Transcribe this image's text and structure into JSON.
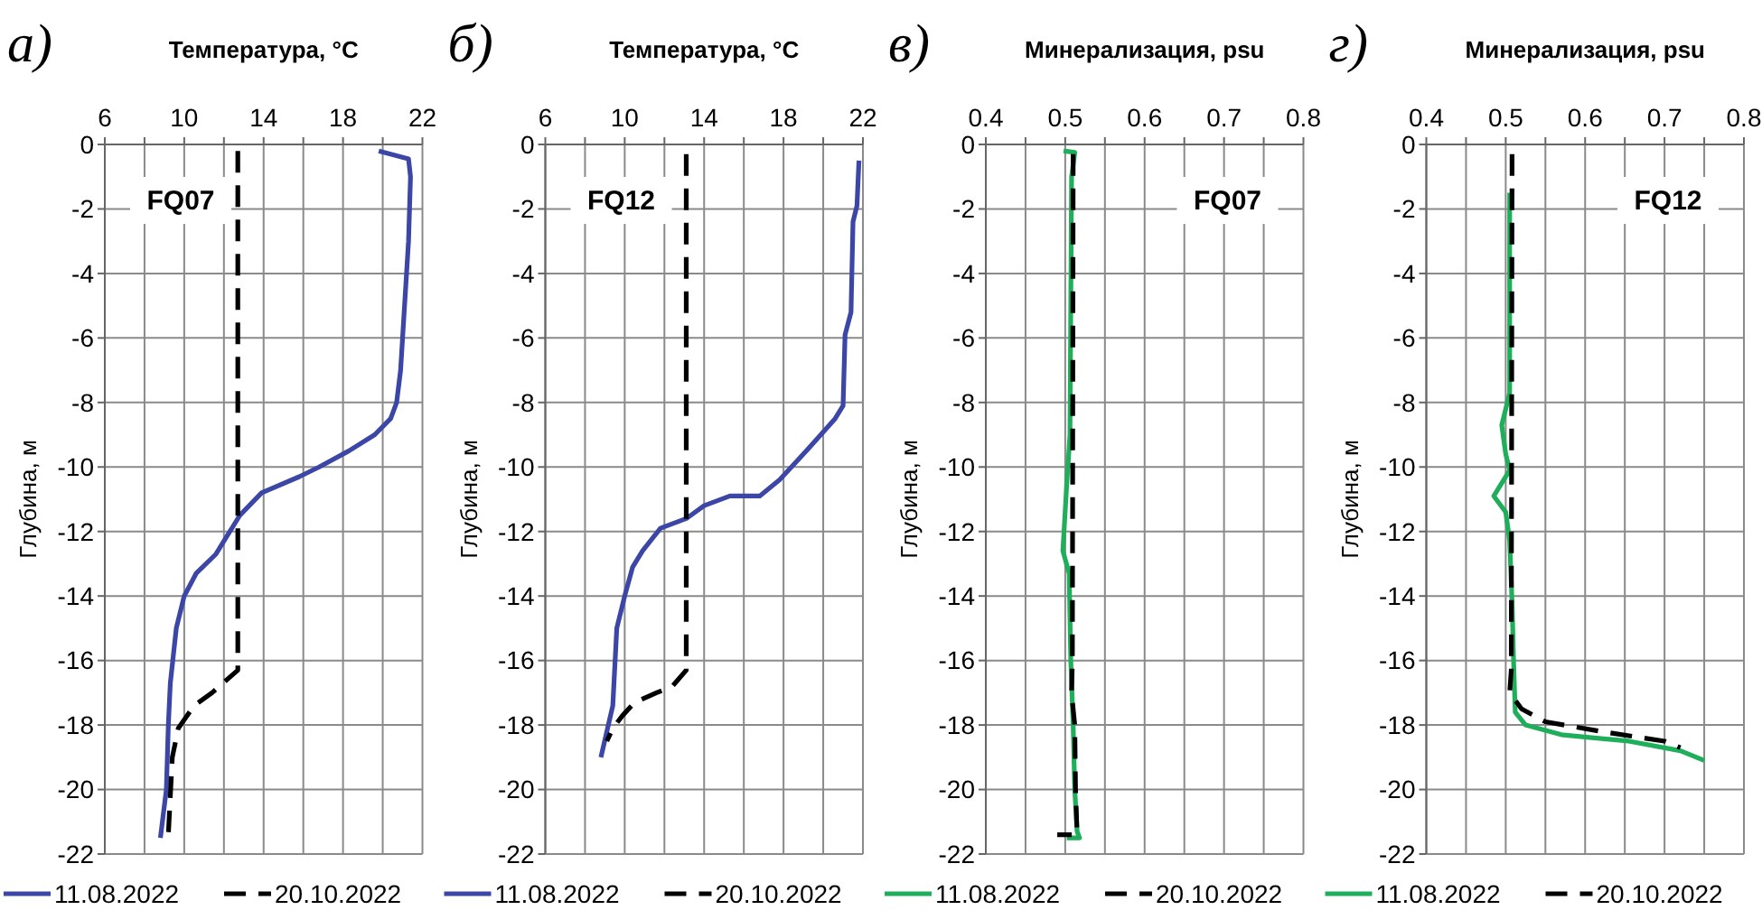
{
  "chart_data": [
    {
      "type": "line",
      "title": "а)",
      "xlabel": "Температура, °C",
      "ylabel": "Глубина, м",
      "xlim": [
        6,
        22
      ],
      "xticks": [
        6,
        {
          "value": 8,
          "label": null
        },
        10,
        {
          "value": 12,
          "label": null
        },
        14,
        {
          "value": 16,
          "label": null
        },
        18,
        {
          "value": 20,
          "label": null
        },
        22
      ],
      "ylim": [
        -22,
        0
      ],
      "yticks": [
        0,
        -2,
        -4,
        -6,
        -8,
        -10,
        -12,
        -14,
        -16,
        -18,
        -20,
        -22
      ],
      "grid": true,
      "legend": "bottom",
      "annotations": [
        "FQ07"
      ],
      "series": [
        {
          "name": "11.08.2022",
          "color": "#3b46a6",
          "line_style": "solid",
          "x": [
            19.8,
            21.3,
            21.4,
            21.3,
            21.2,
            21.0,
            20.9,
            20.7,
            20.4,
            19.6,
            18.3,
            16.8,
            15.8,
            13.9,
            12.8,
            12.3,
            11.6,
            10.6,
            10.0,
            9.6,
            9.3,
            9.2,
            9.1,
            8.8
          ],
          "values": [
            -0.2,
            -0.45,
            -1,
            -3,
            -4,
            -6,
            -7,
            -8,
            -8.5,
            -9,
            -9.5,
            -10,
            -10.3,
            -10.8,
            -11.5,
            -12,
            -12.7,
            -13.3,
            -14,
            -15,
            -16.7,
            -18,
            -20,
            -21.5
          ]
        },
        {
          "name": "20.10.2022",
          "color": "#000000",
          "line_style": "dashed",
          "x": [
            12.7,
            12.7,
            11.4,
            10.5,
            9.7,
            9.4,
            9.2
          ],
          "values": [
            -0.2,
            -16.3,
            -17,
            -17.4,
            -18.1,
            -19,
            -21.4
          ]
        }
      ]
    },
    {
      "type": "line",
      "title": "б)",
      "xlabel": "Температура, °C",
      "ylabel": "Глубина, м",
      "xlim": [
        6,
        22
      ],
      "xticks": [
        6,
        {
          "value": 8,
          "label": null
        },
        10,
        {
          "value": 12,
          "label": null
        },
        14,
        {
          "value": 16,
          "label": null
        },
        18,
        {
          "value": 20,
          "label": null
        },
        22
      ],
      "ylim": [
        -22,
        0
      ],
      "yticks": [
        0,
        -2,
        -4,
        -6,
        -8,
        -10,
        -12,
        -14,
        -16,
        -18,
        -20,
        -22
      ],
      "grid": true,
      "legend": "bottom",
      "annotations": [
        "FQ12"
      ],
      "series": [
        {
          "name": "11.08.2022",
          "color": "#3b46a6",
          "line_style": "solid",
          "x": [
            21.8,
            21.7,
            21.5,
            21.4,
            21.1,
            21.0,
            20.6,
            19.3,
            17.8,
            16.8,
            15.3,
            14.0,
            13.1,
            11.8,
            10.9,
            10.4,
            10.0,
            9.6,
            9.4,
            8.8
          ],
          "values": [
            -0.5,
            -1.9,
            -2.4,
            -5.2,
            -5.9,
            -8.1,
            -8.5,
            -9.4,
            -10.4,
            -10.9,
            -10.9,
            -11.2,
            -11.6,
            -11.9,
            -12.6,
            -13.1,
            -14,
            -15,
            -17.4,
            -19
          ]
        },
        {
          "name": "20.10.2022",
          "color": "#000000",
          "line_style": "dashed",
          "x": [
            13.1,
            13.1,
            12.4,
            11.6,
            10.5,
            9.9,
            9.4,
            9.1
          ],
          "values": [
            -0.3,
            -16.3,
            -16.8,
            -17,
            -17.3,
            -17.7,
            -18.1,
            -18.5
          ]
        }
      ]
    },
    {
      "type": "line",
      "title": "в)",
      "xlabel": "Минерализация, psu",
      "ylabel": "Глубина, м",
      "xlim": [
        0.4,
        0.8
      ],
      "xticks": [
        0.4,
        {
          "value": 0.45,
          "label": null
        },
        0.5,
        {
          "value": 0.55,
          "label": null
        },
        0.6,
        {
          "value": 0.65,
          "label": null
        },
        0.7,
        {
          "value": 0.75,
          "label": null
        },
        0.8
      ],
      "ylim": [
        -22,
        0
      ],
      "yticks": [
        0,
        -2,
        -4,
        -6,
        -8,
        -10,
        -12,
        -14,
        -16,
        -18,
        -20,
        -22
      ],
      "grid": true,
      "legend": "bottom",
      "annotations": [
        "FQ07"
      ],
      "series": [
        {
          "name": "11.08.2022",
          "color": "#1fae5a",
          "line_style": "solid",
          "x": [
            0.498,
            0.512,
            0.508,
            0.507,
            0.506,
            0.502,
            0.498,
            0.497,
            0.505,
            0.507,
            0.51,
            0.512,
            0.515,
            0.518,
            0.502
          ],
          "values": [
            -0.2,
            -0.25,
            -1,
            -5,
            -9,
            -10.5,
            -12.2,
            -12.6,
            -13.3,
            -16,
            -18,
            -20,
            -21.3,
            -21.5,
            -21.5
          ]
        },
        {
          "name": "20.10.2022",
          "color": "#000000",
          "line_style": "dashed",
          "x": [
            0.51,
            0.509,
            0.508,
            0.512,
            0.513,
            0.515,
            0.49
          ],
          "values": [
            -0.3,
            -16,
            -17,
            -18,
            -20,
            -21.4,
            -21.4
          ]
        }
      ]
    },
    {
      "type": "line",
      "title": "г)",
      "xlabel": "Минерализация, psu",
      "ylabel": "Глубина, м",
      "xlim": [
        0.4,
        0.8
      ],
      "xticks": [
        0.4,
        {
          "value": 0.45,
          "label": null
        },
        0.5,
        {
          "value": 0.55,
          "label": null
        },
        0.6,
        {
          "value": 0.65,
          "label": null
        },
        0.7,
        {
          "value": 0.75,
          "label": null
        },
        0.8
      ],
      "ylim": [
        -22,
        0
      ],
      "yticks": [
        0,
        -2,
        -4,
        -6,
        -8,
        -10,
        -12,
        -14,
        -16,
        -18,
        -20,
        -22
      ],
      "grid": true,
      "legend": "bottom",
      "annotations": [
        "FQ12"
      ],
      "series": [
        {
          "name": "11.08.2022",
          "color": "#1fae5a",
          "line_style": "solid",
          "x": [
            0.505,
            0.505,
            0.495,
            0.5,
            0.505,
            0.485,
            0.5,
            0.505,
            0.508,
            0.51,
            0.512,
            0.525,
            0.57,
            0.655,
            0.72,
            0.75
          ],
          "values": [
            -1.5,
            -7.7,
            -8.7,
            -9.6,
            -10.1,
            -10.9,
            -11.4,
            -12.3,
            -14.2,
            -16.1,
            -17.6,
            -18,
            -18.3,
            -18.5,
            -18.8,
            -19.1
          ]
        },
        {
          "name": "20.10.2022",
          "color": "#000000",
          "line_style": "dashed",
          "x": [
            0.508,
            0.507,
            0.505,
            0.52,
            0.55,
            0.62,
            0.7,
            0.72
          ],
          "values": [
            -0.3,
            -16.3,
            -17,
            -17.5,
            -17.9,
            -18.2,
            -18.5,
            -18.7
          ]
        }
      ]
    }
  ]
}
